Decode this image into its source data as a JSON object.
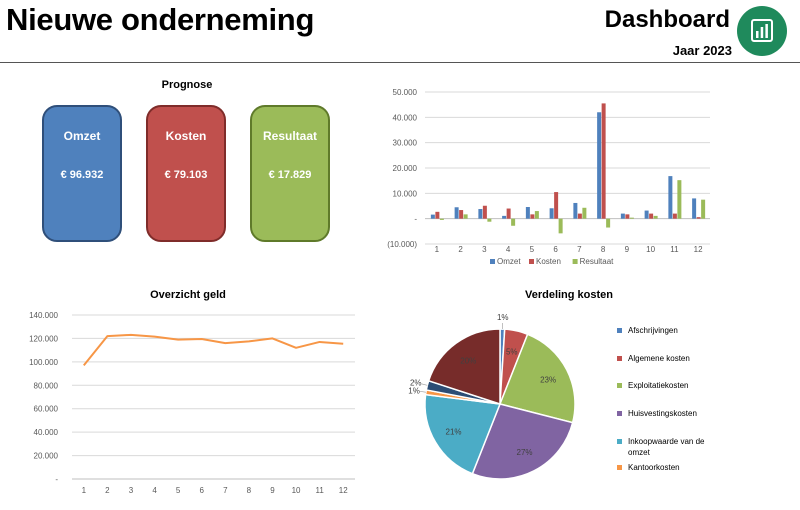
{
  "header": {
    "title": "Nieuwe onderneming",
    "dashboard": "Dashboard",
    "year": "Jaar 2023"
  },
  "colors": {
    "omzet": "#4f81bd",
    "kosten": "#c0504d",
    "resultaat": "#9bbb59",
    "line": "#f79646"
  },
  "prognose": {
    "title": "Prognose",
    "cards": [
      {
        "label": "Omzet",
        "value": "€ 96.932"
      },
      {
        "label": "Kosten",
        "value": "€ 79.103"
      },
      {
        "label": "Resultaat",
        "value": "€ 17.829"
      }
    ]
  },
  "chart_data": [
    {
      "id": "monthly",
      "type": "bar",
      "title": "",
      "categories": [
        "1",
        "2",
        "3",
        "4",
        "5",
        "6",
        "7",
        "8",
        "9",
        "10",
        "11",
        "12"
      ],
      "series": [
        {
          "name": "Omzet",
          "color": "#4f81bd",
          "values": [
            1600,
            4500,
            3800,
            1100,
            4600,
            4100,
            6200,
            42000,
            2000,
            3200,
            16800,
            8000
          ]
        },
        {
          "name": "Kosten",
          "color": "#c0504d",
          "values": [
            2700,
            3400,
            5100,
            4000,
            1700,
            10500,
            2000,
            45500,
            1700,
            2000,
            2000,
            600
          ]
        },
        {
          "name": "Resultaat",
          "color": "#9bbb59",
          "values": [
            -500,
            1700,
            -1200,
            -2800,
            3000,
            -5800,
            4300,
            -3500,
            400,
            1100,
            15200,
            7500
          ]
        }
      ],
      "ylim": [
        -10000,
        50000
      ],
      "yticks": [
        "(10.000)",
        "-",
        "10.000",
        "20.000",
        "30.000",
        "40.000",
        "50.000"
      ],
      "ytick_values": [
        -10000,
        0,
        10000,
        20000,
        30000,
        40000,
        50000
      ]
    },
    {
      "id": "geld",
      "type": "line",
      "title": "Overzicht geld",
      "categories": [
        "1",
        "2",
        "3",
        "4",
        "5",
        "6",
        "7",
        "8",
        "9",
        "10",
        "11",
        "12"
      ],
      "series": [
        {
          "name": "Geld",
          "color": "#f79646",
          "values": [
            97000,
            122000,
            123000,
            121500,
            119000,
            119500,
            116000,
            117500,
            120000,
            112000,
            117000,
            115500
          ]
        }
      ],
      "ylim": [
        0,
        140000
      ],
      "yticks": [
        "-",
        "20.000",
        "40.000",
        "60.000",
        "80.000",
        "100.000",
        "120.000",
        "140.000"
      ],
      "ytick_values": [
        0,
        20000,
        40000,
        60000,
        80000,
        100000,
        120000,
        140000
      ]
    },
    {
      "id": "verdeling",
      "type": "pie",
      "title": "Verdeling kosten",
      "slices": [
        {
          "label": "Afschrijvingen",
          "value": 1,
          "label_text": "1%",
          "color": "#4f81bd"
        },
        {
          "label": "Algemene kosten",
          "value": 5,
          "label_text": "5%",
          "color": "#c0504d"
        },
        {
          "label": "Exploitatiekosten",
          "value": 23,
          "label_text": "23%",
          "color": "#9bbb59"
        },
        {
          "label": "Huisvestingskosten",
          "value": 27,
          "label_text": "27%",
          "color": "#8064a2"
        },
        {
          "label": "Inkoopwaarde van de omzet",
          "value": 21,
          "label_text": "21%",
          "color": "#4bacc6"
        },
        {
          "label": "Kantoorkosten",
          "value": 1,
          "label_text": "1%",
          "color": "#f79646"
        },
        {
          "label": "",
          "value": 2,
          "label_text": "2%",
          "color": "#2c4d75"
        },
        {
          "label": "",
          "value": 20,
          "label_text": "20%",
          "color": "#772c2a"
        }
      ]
    }
  ]
}
